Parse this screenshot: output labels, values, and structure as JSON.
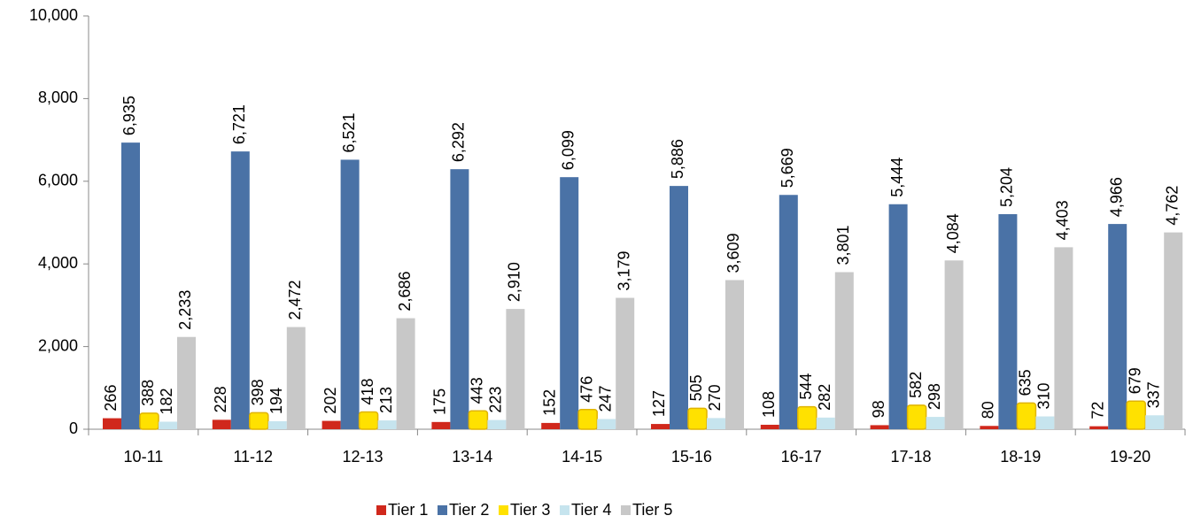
{
  "chart_data": {
    "type": "bar",
    "categories": [
      "10-11",
      "11-12",
      "12-13",
      "13-14",
      "14-15",
      "15-16",
      "16-17",
      "17-18",
      "18-19",
      "19-20"
    ],
    "series": [
      {
        "name": "Tier 1",
        "color": "#d0281c",
        "values": [
          266,
          228,
          202,
          175,
          152,
          127,
          108,
          98,
          80,
          72
        ]
      },
      {
        "name": "Tier 2",
        "color": "#4a72a6",
        "values": [
          6935,
          6721,
          6521,
          6292,
          6099,
          5886,
          5669,
          5444,
          5204,
          4966
        ],
        "value_labels": [
          "6,935",
          "6,721",
          "6,521",
          "6,292",
          "6,099",
          "5,886",
          "5,669",
          "5,444",
          "5,204",
          "4,966"
        ]
      },
      {
        "name": "Tier 3",
        "color": "#ffe100",
        "values": [
          388,
          398,
          418,
          443,
          476,
          505,
          544,
          582,
          635,
          679
        ]
      },
      {
        "name": "Tier 4",
        "color": "#c6e4ee",
        "values": [
          182,
          194,
          213,
          223,
          247,
          270,
          282,
          298,
          310,
          337
        ]
      },
      {
        "name": "Tier 5",
        "color": "#c8c8c8",
        "values": [
          2233,
          2472,
          2686,
          2910,
          3179,
          3609,
          3801,
          4084,
          4403,
          4762
        ],
        "value_labels": [
          "2,233",
          "2,472",
          "2,686",
          "2,910",
          "3,179",
          "3,609",
          "3,801",
          "4,084",
          "4,403",
          "4,762"
        ]
      }
    ],
    "ylim": [
      0,
      10000
    ],
    "yticks": [
      0,
      {
        "value": 2000,
        "label": "2,000"
      },
      {
        "value": 4000,
        "label": "4,000"
      },
      {
        "value": 6000,
        "label": "6,000"
      },
      {
        "value": 8000,
        "label": "8,000"
      },
      {
        "value": 10000,
        "label": "10,000"
      }
    ],
    "legend": "bottom"
  }
}
